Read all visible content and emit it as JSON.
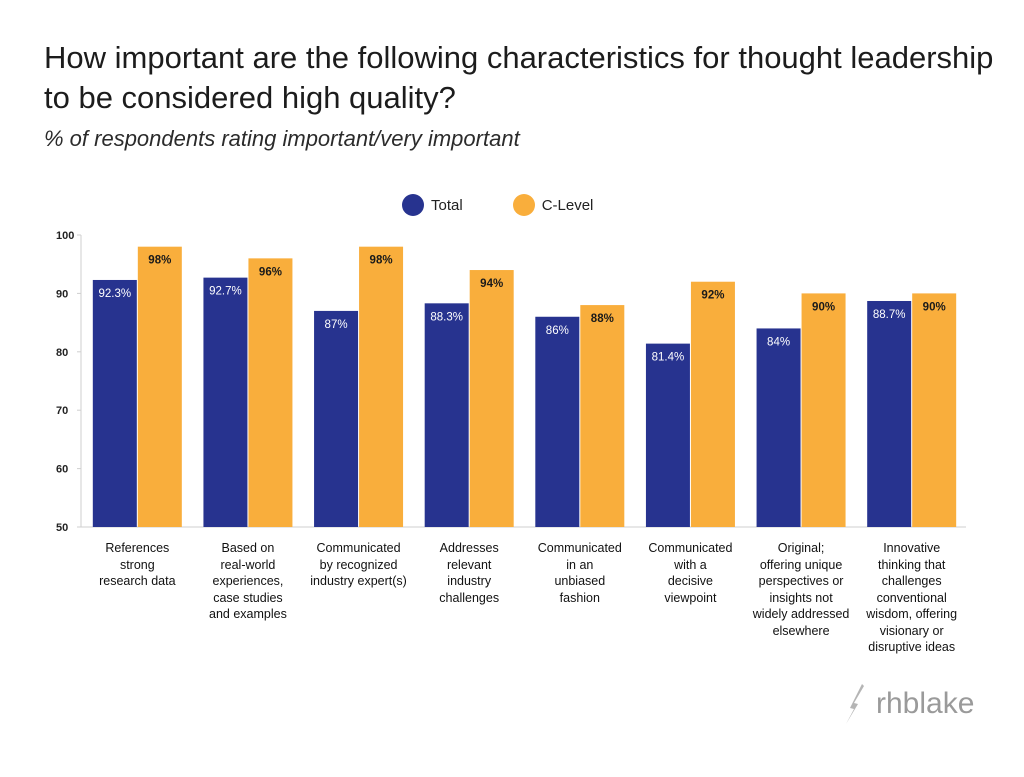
{
  "title": "How important are the following characteristics for thought leadership to be considered high quality?",
  "subtitle": "% of respondents rating important/very important",
  "logo_text": "rhblake",
  "colors": {
    "total": "#27338f",
    "clevel": "#f9ae3c"
  },
  "chart_data": {
    "type": "bar",
    "title": "How important are the following characteristics for thought leadership to be considered high quality?",
    "subtitle": "% of respondents rating important/very important",
    "xlabel": "",
    "ylabel": "",
    "ylim": [
      50,
      100
    ],
    "yticks": [
      "50",
      "60",
      "70",
      "80",
      "90",
      "100"
    ],
    "ytick_values": [
      50,
      60,
      70,
      80,
      90,
      100
    ],
    "grid": false,
    "legend_position": "top-center",
    "categories": [
      [
        "References",
        "strong",
        "research data"
      ],
      [
        "Based on",
        "real-world",
        "experiences,",
        "case studies",
        "and examples"
      ],
      [
        "Communicated",
        "by recognized",
        "industry expert(s)"
      ],
      [
        "Addresses",
        "relevant",
        "industry",
        "challenges"
      ],
      [
        "Communicated",
        "in an",
        "unbiased",
        "fashion"
      ],
      [
        "Communicated",
        "with a",
        "decisive",
        "viewpoint"
      ],
      [
        "Original;",
        "offering unique",
        "perspectives or",
        "insights not",
        "widely addressed",
        "elsewhere"
      ],
      [
        "Innovative",
        "thinking that",
        "challenges",
        "conventional",
        "wisdom, offering",
        "visionary or",
        "disruptive ideas"
      ]
    ],
    "series": [
      {
        "name": "Total",
        "values": [
          92.3,
          92.7,
          87,
          88.3,
          86,
          81.4,
          84,
          88.7
        ],
        "labels": [
          "92.3%",
          "92.7%",
          "87%",
          "88.3%",
          "86%",
          "81.4%",
          "84%",
          "88.7%"
        ]
      },
      {
        "name": "C-Level",
        "values": [
          98,
          96,
          98,
          94,
          88,
          92,
          90,
          90
        ],
        "labels": [
          "98%",
          "96%",
          "98%",
          "94%",
          "88%",
          "92%",
          "90%",
          "90%"
        ]
      }
    ]
  }
}
